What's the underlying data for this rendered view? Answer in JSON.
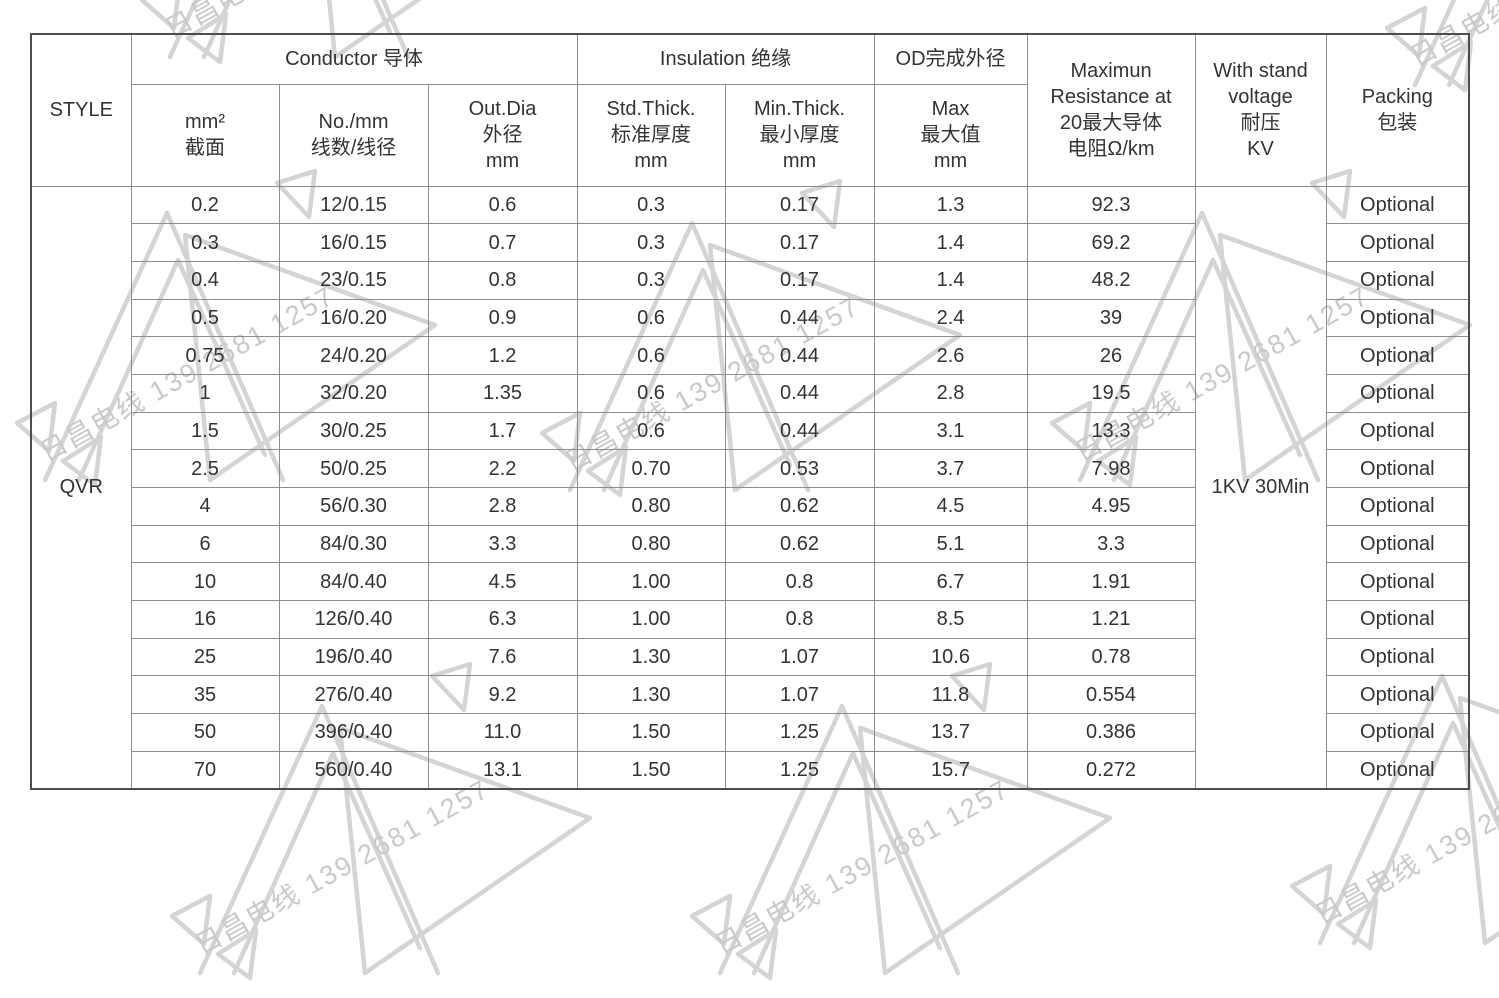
{
  "watermark": {
    "text": "日昌电线 139 2681 1257"
  },
  "colors": {
    "border_inner": "#8d8d8d",
    "border_outer": "#4d4d4d",
    "text": "#333333",
    "watermark": "#c9c9c9"
  },
  "table": {
    "header": {
      "style": "STYLE",
      "conductor_group": "Conductor 导体",
      "insulation_group": "Insulation 绝缘",
      "od_group": "OD完成外径",
      "mm2": [
        "mm²",
        "截面"
      ],
      "no_mm": [
        "No./mm",
        "线数/线径"
      ],
      "out_dia": [
        "Out.Dia",
        "外径",
        "mm"
      ],
      "std_thick": [
        "Std.Thick.",
        "标准厚度",
        "mm"
      ],
      "min_thick": [
        "Min.Thick.",
        "最小厚度",
        "mm"
      ],
      "od_max": [
        "Max",
        "最大值",
        "mm"
      ],
      "resistance": [
        "Maximun",
        "Resistance at",
        "20最大导体",
        "电阻Ω/km"
      ],
      "withstand": [
        "With stand",
        "voltage",
        "耐压",
        "KV"
      ],
      "packing": [
        "Packing",
        "包装"
      ]
    },
    "style_value": "QVR",
    "withstand_value": "1KV 30Min",
    "rows": [
      {
        "mm2": "0.2",
        "strands": "12/0.15",
        "out_dia": "0.6",
        "std_thick": "0.3",
        "min_thick": "0.17",
        "od_max": "1.3",
        "resistance": "92.3",
        "packing": "Optional"
      },
      {
        "mm2": "0.3",
        "strands": "16/0.15",
        "out_dia": "0.7",
        "std_thick": "0.3",
        "min_thick": "0.17",
        "od_max": "1.4",
        "resistance": "69.2",
        "packing": "Optional"
      },
      {
        "mm2": "0.4",
        "strands": "23/0.15",
        "out_dia": "0.8",
        "std_thick": "0.3",
        "min_thick": "0.17",
        "od_max": "1.4",
        "resistance": "48.2",
        "packing": "Optional"
      },
      {
        "mm2": "0.5",
        "strands": "16/0.20",
        "out_dia": "0.9",
        "std_thick": "0.6",
        "min_thick": "0.44",
        "od_max": "2.4",
        "resistance": "39",
        "packing": "Optional"
      },
      {
        "mm2": "0.75",
        "strands": "24/0.20",
        "out_dia": "1.2",
        "std_thick": "0.6",
        "min_thick": "0.44",
        "od_max": "2.6",
        "resistance": "26",
        "packing": "Optional"
      },
      {
        "mm2": "1",
        "strands": "32/0.20",
        "out_dia": "1.35",
        "std_thick": "0.6",
        "min_thick": "0.44",
        "od_max": "2.8",
        "resistance": "19.5",
        "packing": "Optional"
      },
      {
        "mm2": "1.5",
        "strands": "30/0.25",
        "out_dia": "1.7",
        "std_thick": "0.6",
        "min_thick": "0.44",
        "od_max": "3.1",
        "resistance": "13.3",
        "packing": "Optional"
      },
      {
        "mm2": "2.5",
        "strands": "50/0.25",
        "out_dia": "2.2",
        "std_thick": "0.70",
        "min_thick": "0.53",
        "od_max": "3.7",
        "resistance": "7.98",
        "packing": "Optional"
      },
      {
        "mm2": "4",
        "strands": "56/0.30",
        "out_dia": "2.8",
        "std_thick": "0.80",
        "min_thick": "0.62",
        "od_max": "4.5",
        "resistance": "4.95",
        "packing": "Optional"
      },
      {
        "mm2": "6",
        "strands": "84/0.30",
        "out_dia": "3.3",
        "std_thick": "0.80",
        "min_thick": "0.62",
        "od_max": "5.1",
        "resistance": "3.3",
        "packing": "Optional"
      },
      {
        "mm2": "10",
        "strands": "84/0.40",
        "out_dia": "4.5",
        "std_thick": "1.00",
        "min_thick": "0.8",
        "od_max": "6.7",
        "resistance": "1.91",
        "packing": "Optional"
      },
      {
        "mm2": "16",
        "strands": "126/0.40",
        "out_dia": "6.3",
        "std_thick": "1.00",
        "min_thick": "0.8",
        "od_max": "8.5",
        "resistance": "1.21",
        "packing": "Optional"
      },
      {
        "mm2": "25",
        "strands": "196/0.40",
        "out_dia": "7.6",
        "std_thick": "1.30",
        "min_thick": "1.07",
        "od_max": "10.6",
        "resistance": "0.78",
        "packing": "Optional"
      },
      {
        "mm2": "35",
        "strands": "276/0.40",
        "out_dia": "9.2",
        "std_thick": "1.30",
        "min_thick": "1.07",
        "od_max": "11.8",
        "resistance": "0.554",
        "packing": "Optional"
      },
      {
        "mm2": "50",
        "strands": "396/0.40",
        "out_dia": "11.0",
        "std_thick": "1.50",
        "min_thick": "1.25",
        "od_max": "13.7",
        "resistance": "0.386",
        "packing": "Optional"
      },
      {
        "mm2": "70",
        "strands": "560/0.40",
        "out_dia": "13.1",
        "std_thick": "1.50",
        "min_thick": "1.25",
        "od_max": "15.7",
        "resistance": "0.272",
        "packing": "Optional"
      }
    ]
  }
}
